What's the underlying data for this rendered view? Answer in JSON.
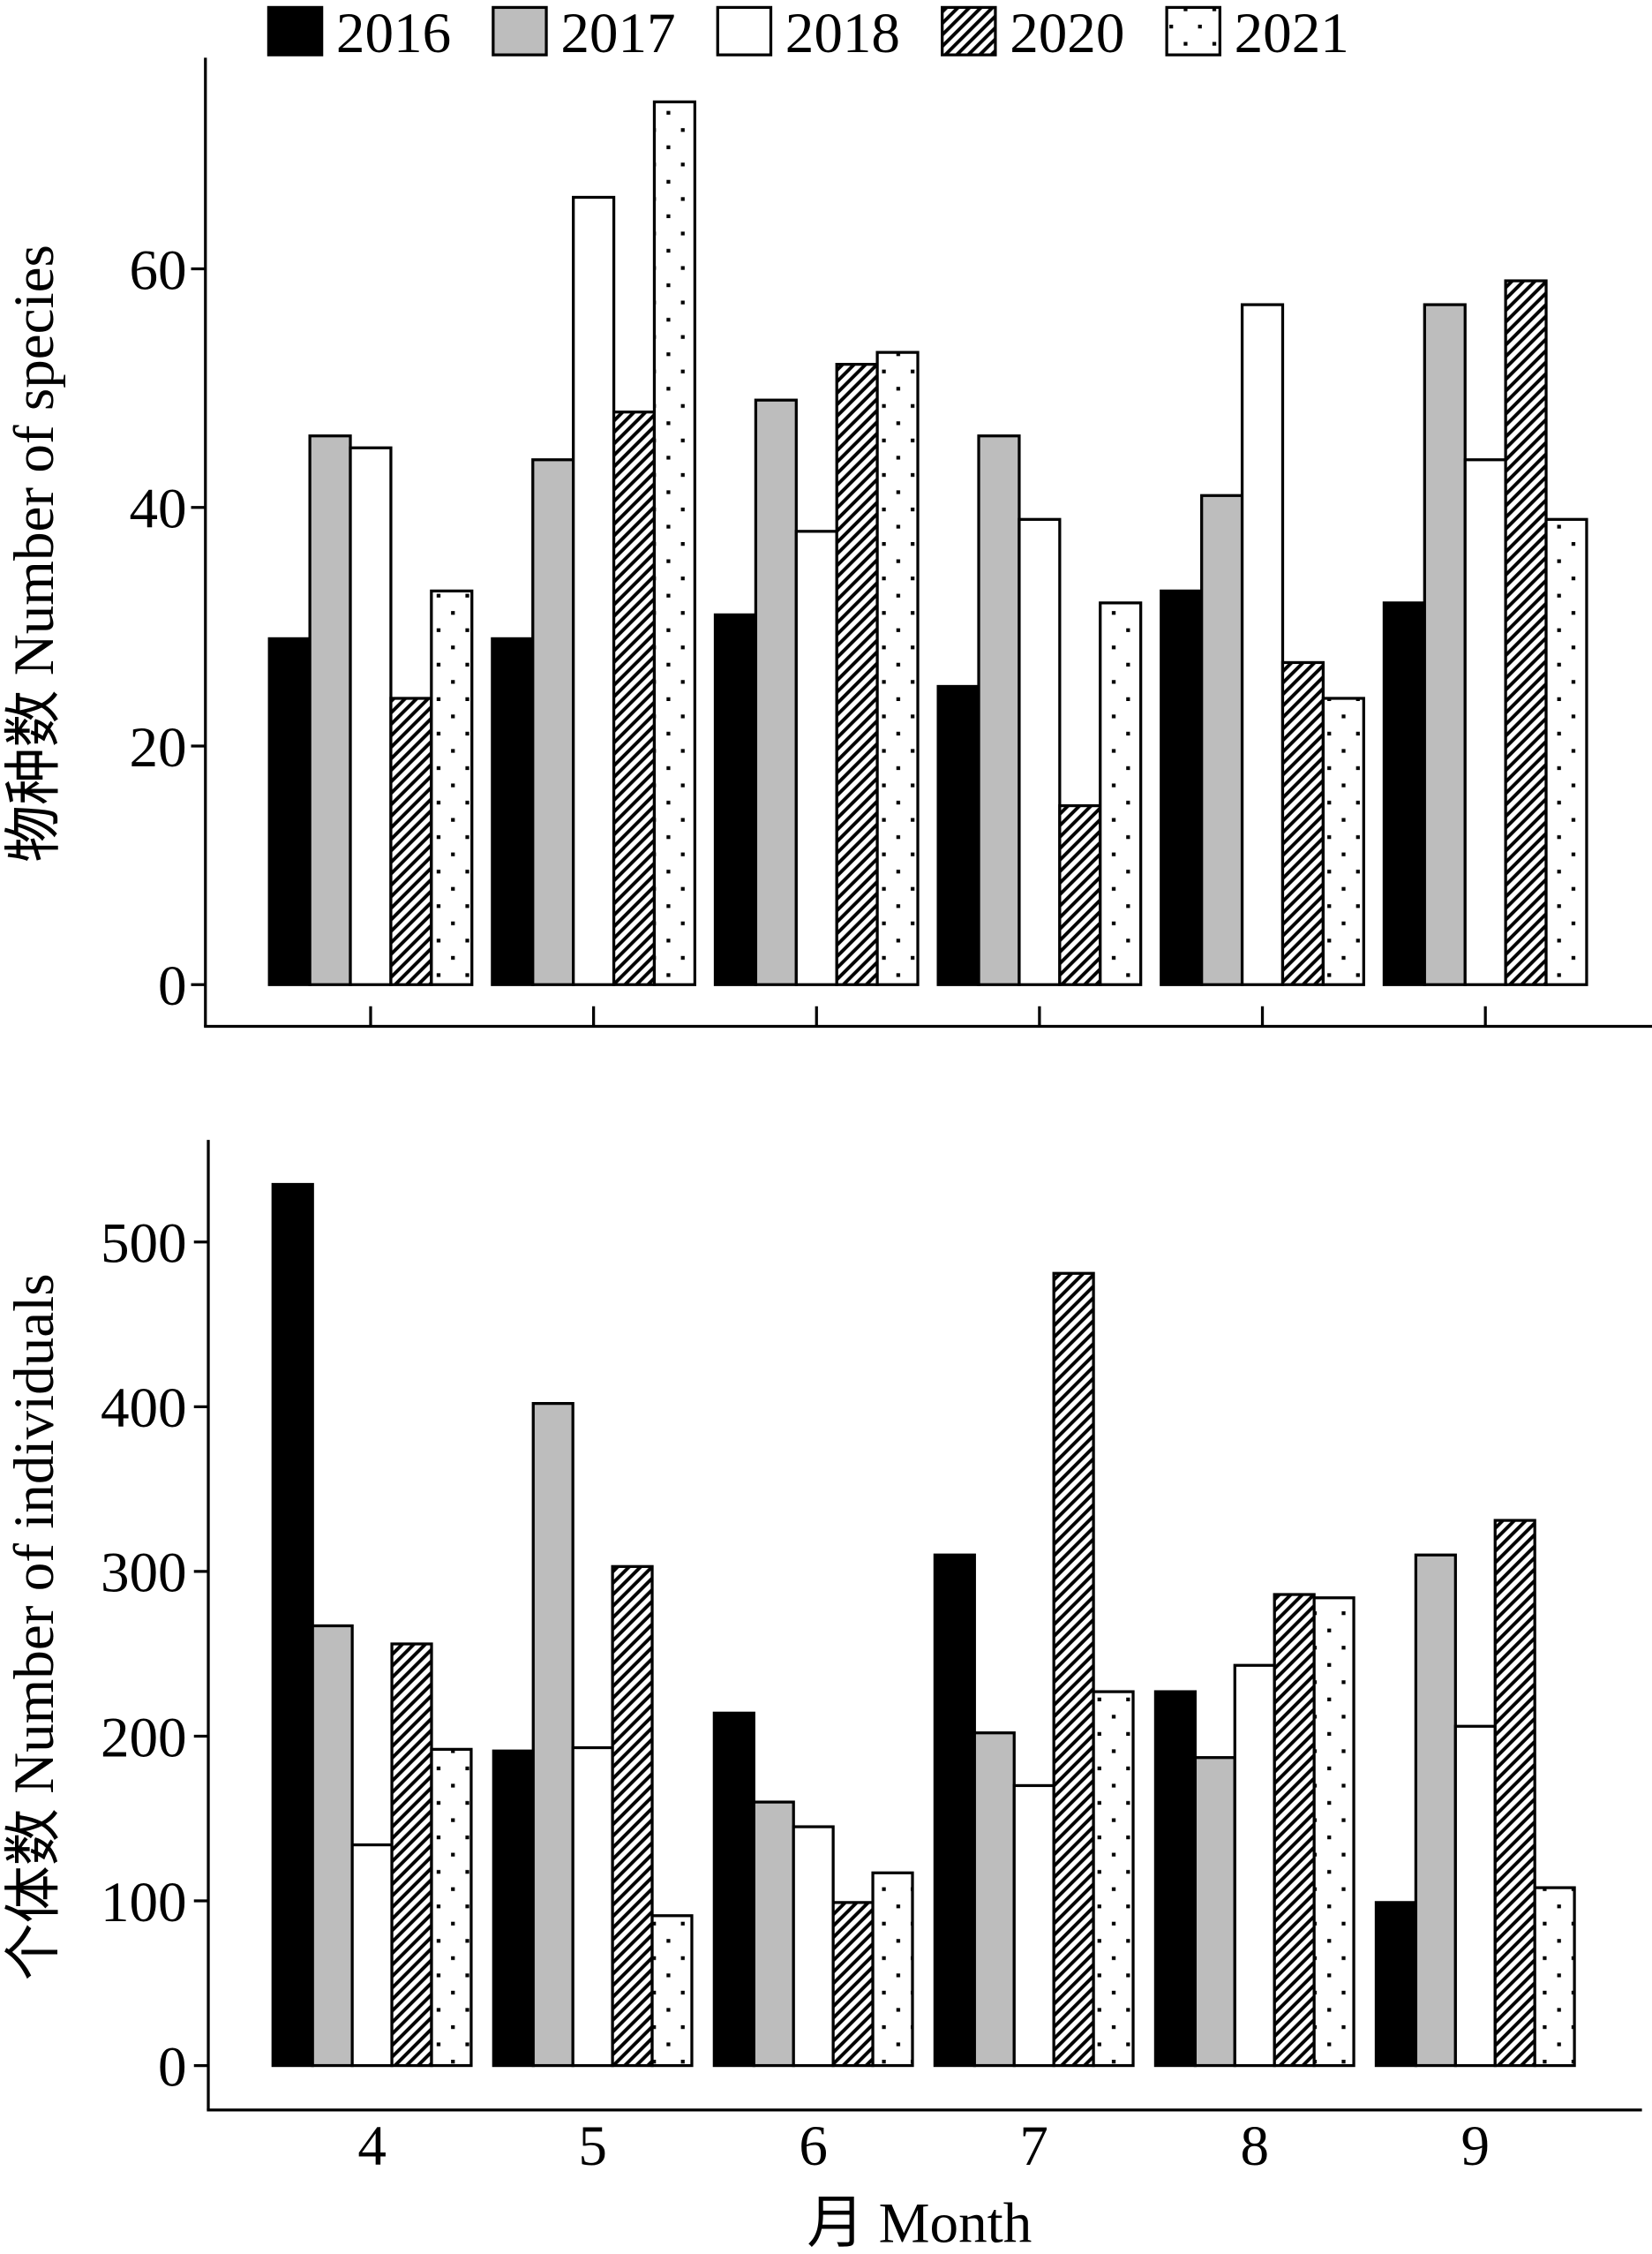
{
  "legend": {
    "placement": "top",
    "items": [
      {
        "label": "2016",
        "color": "#000000",
        "pattern": "solid"
      },
      {
        "label": "2017",
        "color": "#bdbdbd",
        "pattern": "solid"
      },
      {
        "label": "2018",
        "color": "#ffffff",
        "pattern": "solid"
      },
      {
        "label": "2020",
        "color": "#ffffff",
        "pattern": "diagonal-hatch"
      },
      {
        "label": "2021",
        "color": "#ffffff",
        "pattern": "dots"
      }
    ]
  },
  "chart_data": [
    {
      "type": "bar",
      "ylabel": "物种数 Number of species",
      "categories": [
        "4",
        "5",
        "6",
        "7",
        "8",
        "9"
      ],
      "ylim": [
        -3.5,
        77.7
      ],
      "yticks": [
        0,
        20,
        40,
        60
      ],
      "series": [
        {
          "name": "2016",
          "values": [
            29,
            29,
            31,
            25,
            33,
            32
          ]
        },
        {
          "name": "2017",
          "values": [
            46,
            44,
            49,
            46,
            41,
            57
          ]
        },
        {
          "name": "2018",
          "values": [
            45,
            66,
            38,
            39,
            57,
            44
          ]
        },
        {
          "name": "2020",
          "values": [
            24,
            48,
            52,
            15,
            27,
            59
          ]
        },
        {
          "name": "2021",
          "values": [
            33,
            74,
            53,
            32,
            24,
            39
          ]
        }
      ]
    },
    {
      "type": "bar",
      "ylabel": "个体数 Number of individuals",
      "xlabel": "月 Month",
      "categories": [
        "4",
        "5",
        "6",
        "7",
        "8",
        "9"
      ],
      "ylim": [
        -27,
        562
      ],
      "yticks": [
        0,
        100,
        200,
        300,
        400,
        500
      ],
      "series": [
        {
          "name": "2016",
          "values": [
            535,
            191,
            214,
            310,
            227,
            99
          ]
        },
        {
          "name": "2017",
          "values": [
            267,
            402,
            160,
            202,
            187,
            310
          ]
        },
        {
          "name": "2018",
          "values": [
            134,
            193,
            145,
            170,
            243,
            206
          ]
        },
        {
          "name": "2020",
          "values": [
            256,
            303,
            99,
            481,
            286,
            331
          ]
        },
        {
          "name": "2021",
          "values": [
            192,
            91,
            117,
            227,
            284,
            108
          ]
        }
      ]
    }
  ]
}
